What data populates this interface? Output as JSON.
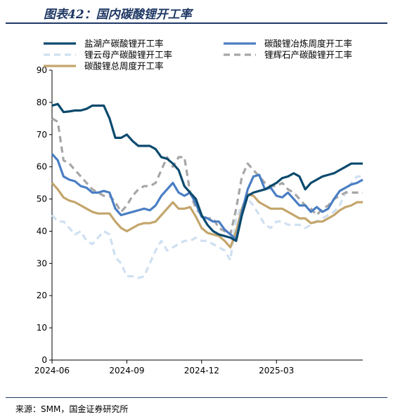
{
  "header": {
    "title": "图表42：国内碳酸锂开工率"
  },
  "footer": {
    "source": "来源：SMM，国金证券研究所"
  },
  "chart_data": {
    "type": "line",
    "title": "图表42：国内碳酸锂开工率",
    "xlabel": "",
    "ylabel": "",
    "ylim": [
      0,
      90
    ],
    "yticks": [
      0,
      10,
      20,
      30,
      40,
      50,
      60,
      70,
      80,
      90
    ],
    "xtick_labels": [
      "2024-06",
      "2024-09",
      "2024-12",
      "2025-03"
    ],
    "xtick_positions": [
      0,
      13,
      26,
      39
    ],
    "x_count": 55,
    "grid": false,
    "legend_position": "top",
    "series": [
      {
        "name": "盐湖产碳酸锂开工率",
        "color": "#0b4a6e",
        "dash": "solid",
        "values": [
          79,
          79.5,
          77,
          77.2,
          77.5,
          77.5,
          78,
          79,
          79,
          79,
          75,
          69,
          69,
          70,
          68,
          66.5,
          66.5,
          66.5,
          65.5,
          63,
          62.5,
          61,
          59,
          54,
          52,
          50,
          45,
          42,
          40,
          39,
          38.5,
          38,
          37,
          45,
          51,
          52,
          52.5,
          53,
          54,
          55,
          56.5,
          57,
          58,
          57,
          53,
          55,
          56,
          57,
          57.5,
          58,
          59,
          60,
          61,
          61,
          61
        ]
      },
      {
        "name": "碳酸锂冶炼周度开工率",
        "color": "#4a7ec4",
        "dash": "solid",
        "values": [
          64,
          62,
          57,
          56,
          55.5,
          54,
          53.5,
          52,
          52,
          52.5,
          52,
          47,
          45,
          45.5,
          46,
          46.5,
          47,
          46.5,
          48,
          51,
          53,
          55,
          52,
          51,
          52,
          48.5,
          44.5,
          44,
          43,
          43,
          40.5,
          39,
          37.5,
          46,
          53,
          57,
          57.5,
          53,
          53.5,
          51,
          50.5,
          52,
          50,
          48,
          48,
          46,
          47.5,
          46,
          47,
          50,
          52.5,
          53.5,
          54.5,
          55,
          56
        ]
      },
      {
        "name": "锂云母产碳酸锂开工率",
        "color": "#cfe0f1",
        "dash": "dash",
        "values": [
          45,
          43,
          43,
          41,
          39,
          40,
          37,
          36,
          38,
          40,
          39,
          32,
          30,
          26,
          26,
          25.5,
          26,
          30,
          34,
          37,
          34,
          35,
          36,
          37,
          37,
          38,
          37,
          37,
          36,
          35,
          34,
          31,
          44,
          48,
          50,
          48,
          45,
          42,
          41,
          43,
          43,
          42,
          42,
          42,
          41,
          42,
          43,
          44,
          45,
          46,
          48,
          52,
          55,
          57,
          57
        ]
      },
      {
        "name": "锂辉石产碳酸锂开工率",
        "color": "#a6a6a6",
        "dash": "dash",
        "values": [
          75,
          74,
          62,
          61,
          59,
          57,
          55,
          53,
          52,
          51,
          51,
          49,
          46,
          48,
          51,
          53,
          54,
          54,
          55,
          59,
          63,
          60,
          63,
          63,
          52,
          47,
          45,
          44,
          44,
          41,
          40,
          39,
          47,
          57,
          61,
          59,
          57,
          55,
          54,
          54,
          55,
          53,
          52,
          50,
          48,
          47,
          45,
          47,
          48,
          50,
          51,
          52,
          52,
          52,
          52
        ]
      },
      {
        "name": "碳酸锂总周度开工率",
        "color": "#c4a56b",
        "dash": "solid",
        "values": [
          55,
          53,
          50.5,
          49.5,
          49,
          48,
          47,
          46,
          45.5,
          45.5,
          45.5,
          43,
          41,
          40,
          41,
          42,
          42.5,
          42.5,
          43,
          45,
          47,
          49,
          47,
          47,
          47.5,
          44.5,
          41,
          39.5,
          39,
          38.5,
          37,
          35,
          40,
          47,
          51.5,
          51,
          49,
          48,
          47,
          47,
          47,
          46,
          45,
          44,
          44,
          42.5,
          43,
          43,
          44,
          45,
          46.5,
          47.5,
          48,
          49,
          49
        ]
      }
    ]
  }
}
